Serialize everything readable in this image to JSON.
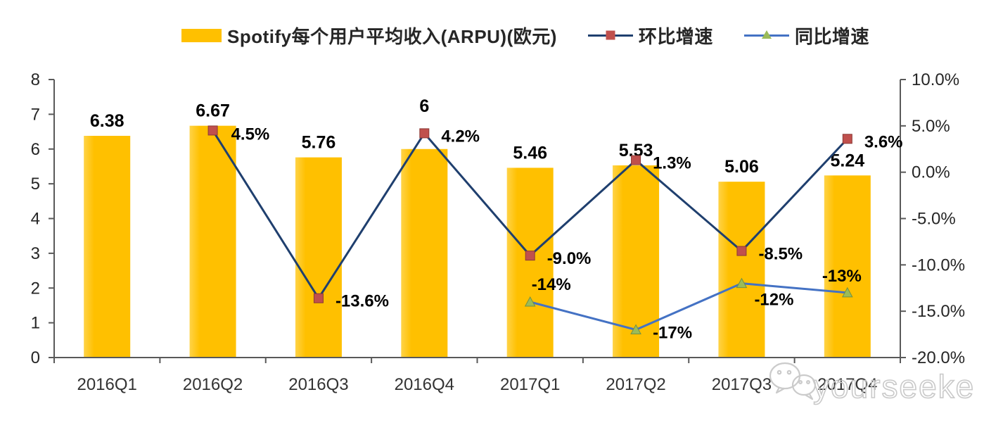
{
  "legend": {
    "items": [
      {
        "label": "Spotify每个用户平均收入(ARPU)(欧元)",
        "type": "bar",
        "color": "#FFC000"
      },
      {
        "label": "环比增速",
        "type": "line",
        "line_color": "#1F3F6E",
        "marker": "square",
        "marker_color": "#C0504D"
      },
      {
        "label": "同比增速",
        "type": "line",
        "line_color": "#4472C4",
        "marker": "triangle",
        "marker_color": "#9BBB59"
      }
    ]
  },
  "watermark": {
    "text": "yourseeker",
    "icon": "wechat-icon",
    "color": "#c9c9c9"
  },
  "chart_data": {
    "type": "bar+line combo",
    "title": "Spotify每个用户平均收入(ARPU)(欧元)",
    "legend_position": "top",
    "grid": false,
    "categories": [
      "2016Q1",
      "2016Q2",
      "2016Q3",
      "2016Q4",
      "2017Q1",
      "2017Q2",
      "2017Q3",
      "2017Q4"
    ],
    "bar_series": {
      "name": "Spotify每个用户平均收入(ARPU)(欧元)",
      "axis": "left",
      "color": "#FFC000",
      "values": [
        6.38,
        6.67,
        5.76,
        6,
        5.46,
        5.53,
        5.06,
        5.24
      ],
      "labels": [
        "6.38",
        "6.67",
        "5.76",
        "6",
        "5.46",
        "5.53",
        "5.06",
        "5.24"
      ],
      "label_dy": [
        0,
        0,
        0,
        -40,
        0,
        0,
        0,
        0
      ]
    },
    "line_series": [
      {
        "name": "环比增速",
        "axis": "right",
        "line_color": "#1F3F6E",
        "marker": "square",
        "marker_color": "#C0504D",
        "marker_stroke": "#8C3A36",
        "points": [
          {
            "category_index": 1,
            "value": 4.5,
            "label": "4.5%",
            "label_offset": [
              26,
              13
            ]
          },
          {
            "category_index": 2,
            "value": -13.6,
            "label": "-13.6%",
            "label_offset": [
              24,
              12
            ]
          },
          {
            "category_index": 3,
            "value": 4.2,
            "label": "4.2%",
            "label_offset": [
              24,
              12
            ]
          },
          {
            "category_index": 4,
            "value": -9.0,
            "label": "-9.0%",
            "label_offset": [
              24,
              12
            ]
          },
          {
            "category_index": 5,
            "value": 1.3,
            "label": "1.3%",
            "label_offset": [
              24,
              12
            ]
          },
          {
            "category_index": 6,
            "value": -8.5,
            "label": "-8.5%",
            "label_offset": [
              24,
              12
            ]
          },
          {
            "category_index": 7,
            "value": 3.6,
            "label": "3.6%",
            "label_offset": [
              24,
              12
            ]
          }
        ]
      },
      {
        "name": "同比增速",
        "axis": "right",
        "line_color": "#4472C4",
        "marker": "triangle",
        "marker_color": "#9BBB59",
        "marker_stroke": "#74913F",
        "points": [
          {
            "category_index": 4,
            "value": -14,
            "label": "-14%",
            "label_offset": [
              2,
              -17
            ]
          },
          {
            "category_index": 5,
            "value": -17,
            "label": "-17%",
            "label_offset": [
              24,
              12
            ]
          },
          {
            "category_index": 6,
            "value": -12,
            "label": "-12%",
            "label_offset": [
              18,
              31
            ]
          },
          {
            "category_index": 7,
            "value": -13,
            "label": "-13%",
            "label_offset": [
              -36,
              -16
            ]
          }
        ]
      }
    ],
    "left_axis": {
      "min": 0,
      "max": 8,
      "step": 1,
      "tick_labels": [
        "0",
        "1",
        "2",
        "3",
        "4",
        "5",
        "6",
        "7",
        "8"
      ]
    },
    "right_axis": {
      "min": -20,
      "max": 10,
      "step": 5,
      "tick_labels": [
        "-20.0%",
        "-15.0%",
        "-10.0%",
        "-5.0%",
        "0.0%",
        "5.0%",
        "10.0%"
      ]
    }
  },
  "style": {
    "axis_color": "#595959",
    "tick_label_color": "#262626",
    "x_label_color": "#333333",
    "data_label_color": "#000000"
  }
}
